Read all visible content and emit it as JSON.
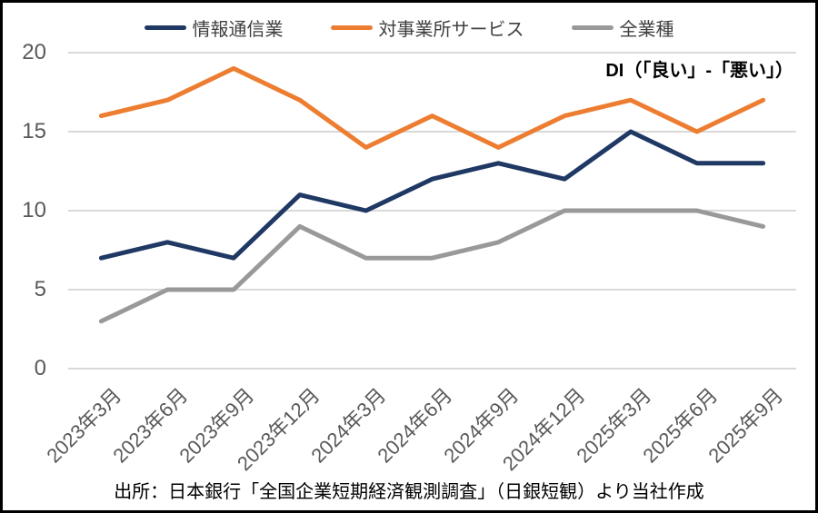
{
  "annotation": "DI（「良い」-「悪い」）",
  "source_note": "出所：日本銀行「全国企業短期経済観測調査」（日銀短観）より当社作成",
  "chart_data": {
    "type": "line",
    "title": "",
    "xlabel": "",
    "ylabel": "",
    "categories": [
      "2023年3月",
      "2023年6月",
      "2023年9月",
      "2023年12月",
      "2024年3月",
      "2024年6月",
      "2024年9月",
      "2024年12月",
      "2025年3月",
      "2025年6月",
      "2025年9月"
    ],
    "series": [
      {
        "name": "情報通信業",
        "color": "#1f3864",
        "values": [
          7,
          8,
          7,
          11,
          10,
          12,
          13,
          12,
          15,
          13,
          13
        ]
      },
      {
        "name": "対事業所サービス",
        "color": "#ed7d31",
        "values": [
          16,
          17,
          19,
          17,
          14,
          16,
          14,
          16,
          17,
          15,
          17
        ]
      },
      {
        "name": "全業種",
        "color": "#999999",
        "values": [
          3,
          5,
          5,
          9,
          7,
          7,
          8,
          10,
          10,
          10,
          9
        ]
      }
    ],
    "ylim": [
      0,
      20
    ],
    "y_ticks": [
      0,
      5,
      10,
      15,
      20
    ],
    "grid": true,
    "legend_position": "top"
  },
  "colors": {
    "background": "#ffffff",
    "border": "#000000",
    "gridline": "#d9d9d9",
    "tick_label": "#595959",
    "legend_text": "#404040"
  }
}
